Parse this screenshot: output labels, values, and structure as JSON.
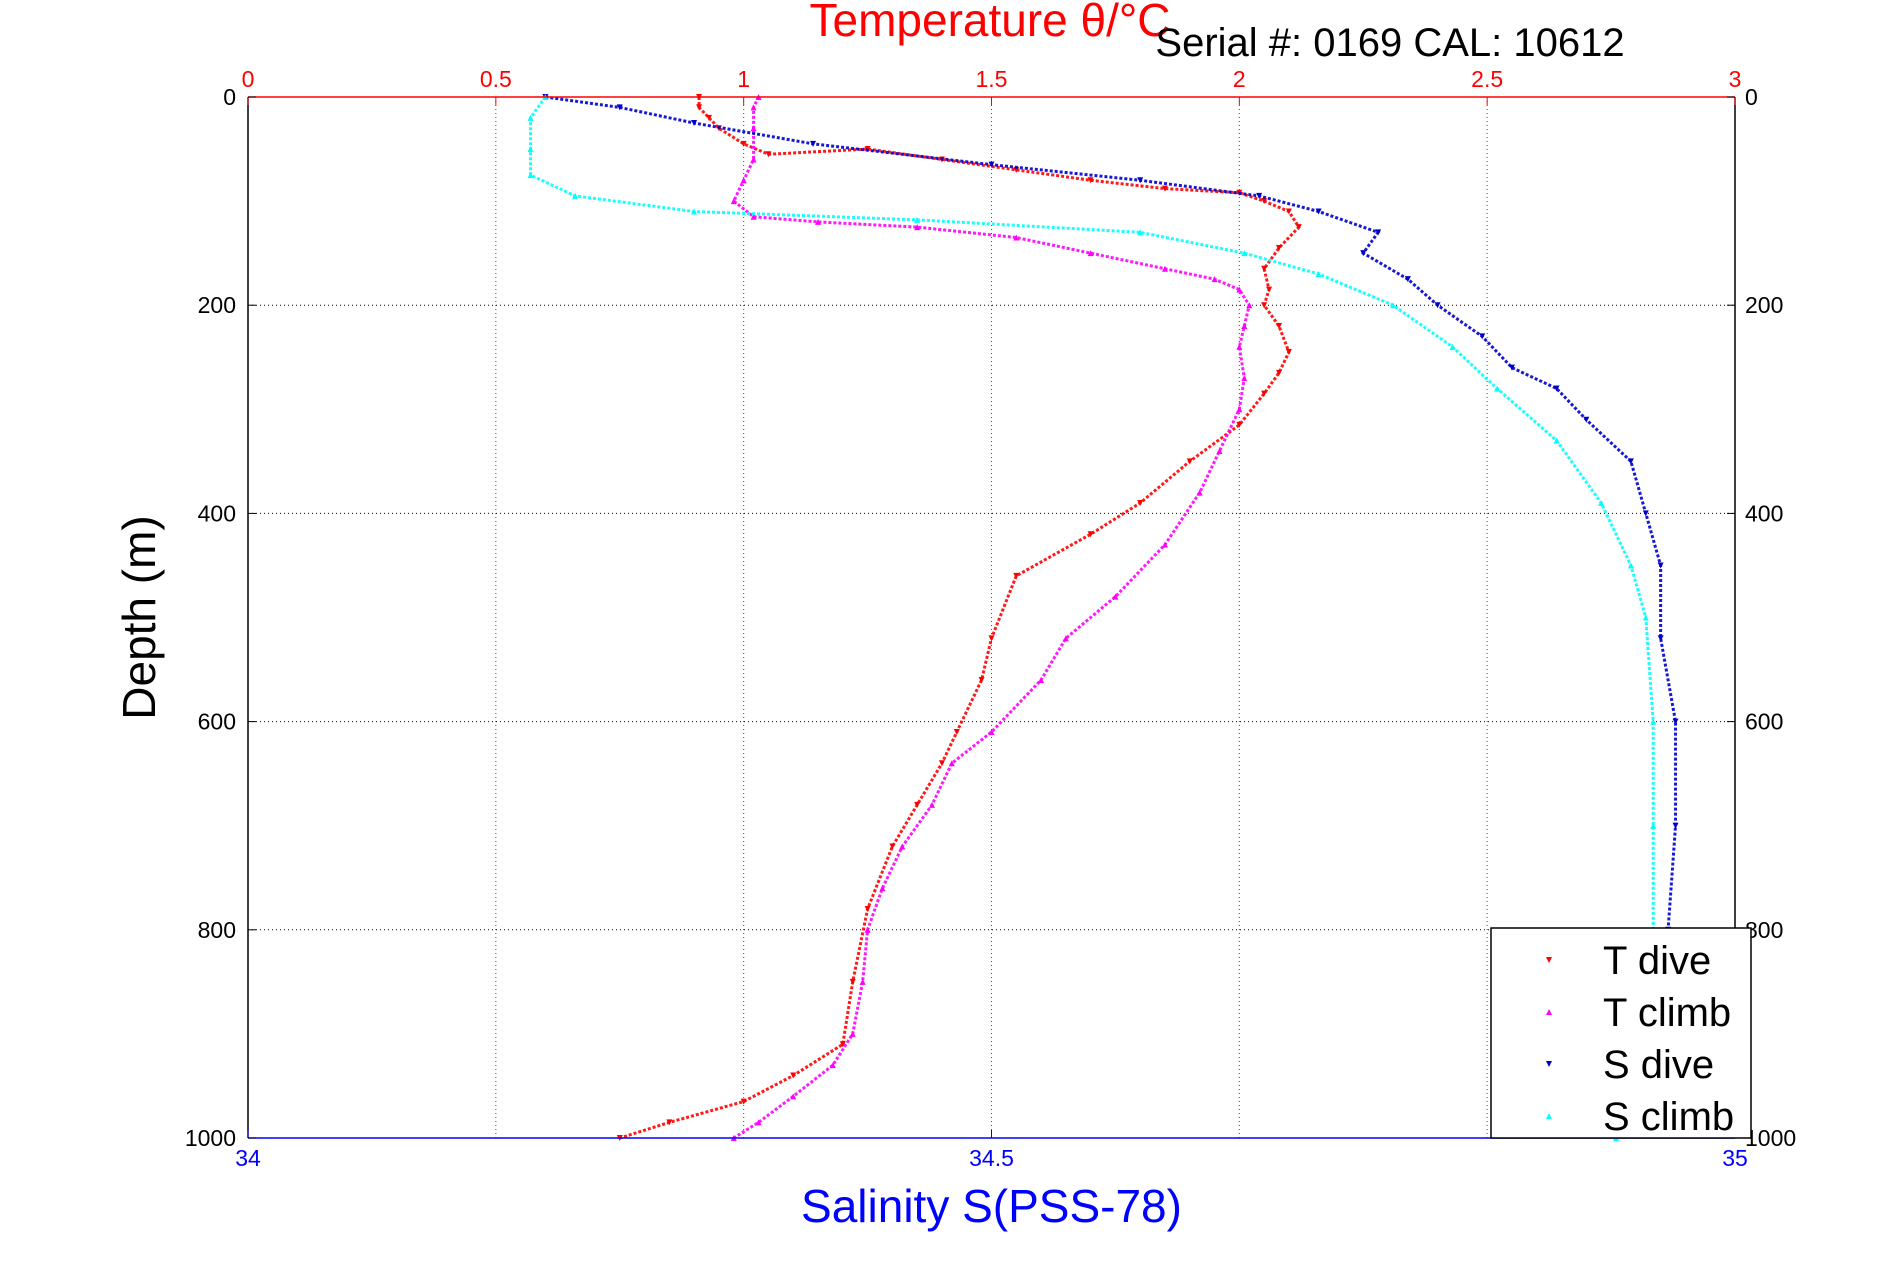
{
  "serial_text": "Serial #: 0169 CAL: 10612",
  "colors": {
    "temperature_axis": "#ff0000",
    "salinity_axis": "#0000ff",
    "t_dive": "#ff0000",
    "t_climb": "#ff00ff",
    "s_dive": "#0000cc",
    "s_climb": "#00ffff",
    "grid": "#000000"
  },
  "chart_data": {
    "type": "scatter",
    "title": "Temperature θ/°C",
    "top_axis": {
      "label": "Temperature θ/°C",
      "range": [
        0,
        3
      ],
      "ticks": [
        0,
        0.5,
        1,
        1.5,
        2,
        2.5,
        3
      ],
      "tick_labels": [
        "0",
        "0.5",
        "1",
        "1.5",
        "2",
        "2.5",
        "3"
      ],
      "grid": true
    },
    "bottom_axis": {
      "label": "Salinity S(PSS-78)",
      "range": [
        34,
        35
      ],
      "ticks": [
        34,
        34.5,
        35
      ],
      "tick_labels": [
        "34",
        "34.5",
        "35"
      ]
    },
    "y_axis": {
      "label": "Depth (m)",
      "range": [
        0,
        1000
      ],
      "reversed": true,
      "ticks": [
        0,
        200,
        400,
        600,
        800,
        1000
      ],
      "tick_labels": [
        "0",
        "200",
        "400",
        "600",
        "800",
        "1000"
      ],
      "grid": true,
      "mirrored_right": true
    },
    "legend": {
      "position": "bottom-right",
      "entries": [
        "T dive",
        "T climb",
        "S dive",
        "S climb"
      ]
    },
    "series": [
      {
        "name": "T dive",
        "axis": "temperature",
        "marker": "triangle-down",
        "points": [
          [
            0.91,
            0
          ],
          [
            0.91,
            10
          ],
          [
            0.93,
            20
          ],
          [
            0.95,
            30
          ],
          [
            1.0,
            45
          ],
          [
            1.05,
            55
          ],
          [
            1.25,
            50
          ],
          [
            1.4,
            60
          ],
          [
            1.55,
            70
          ],
          [
            1.7,
            80
          ],
          [
            1.85,
            88
          ],
          [
            2.0,
            92
          ],
          [
            2.05,
            100
          ],
          [
            2.1,
            110
          ],
          [
            2.12,
            125
          ],
          [
            2.08,
            145
          ],
          [
            2.05,
            165
          ],
          [
            2.06,
            185
          ],
          [
            2.05,
            200
          ],
          [
            2.08,
            220
          ],
          [
            2.1,
            245
          ],
          [
            2.08,
            265
          ],
          [
            2.05,
            285
          ],
          [
            2.0,
            315
          ],
          [
            1.9,
            350
          ],
          [
            1.8,
            390
          ],
          [
            1.7,
            420
          ],
          [
            1.55,
            460
          ],
          [
            1.5,
            520
          ],
          [
            1.48,
            560
          ],
          [
            1.43,
            610
          ],
          [
            1.4,
            640
          ],
          [
            1.35,
            680
          ],
          [
            1.3,
            720
          ],
          [
            1.25,
            780
          ],
          [
            1.22,
            850
          ],
          [
            1.2,
            910
          ],
          [
            1.1,
            940
          ],
          [
            1.0,
            965
          ],
          [
            0.85,
            985
          ],
          [
            0.75,
            1000
          ]
        ]
      },
      {
        "name": "T climb",
        "axis": "temperature",
        "marker": "triangle-up",
        "points": [
          [
            1.03,
            0
          ],
          [
            1.02,
            10
          ],
          [
            1.02,
            30
          ],
          [
            1.02,
            60
          ],
          [
            1.0,
            80
          ],
          [
            0.98,
            100
          ],
          [
            1.02,
            115
          ],
          [
            1.15,
            120
          ],
          [
            1.35,
            125
          ],
          [
            1.55,
            135
          ],
          [
            1.7,
            150
          ],
          [
            1.85,
            165
          ],
          [
            1.95,
            175
          ],
          [
            2.0,
            185
          ],
          [
            2.02,
            200
          ],
          [
            2.01,
            220
          ],
          [
            2.0,
            240
          ],
          [
            2.01,
            270
          ],
          [
            2.0,
            300
          ],
          [
            1.96,
            340
          ],
          [
            1.92,
            380
          ],
          [
            1.85,
            430
          ],
          [
            1.75,
            480
          ],
          [
            1.65,
            520
          ],
          [
            1.6,
            560
          ],
          [
            1.5,
            610
          ],
          [
            1.42,
            640
          ],
          [
            1.38,
            680
          ],
          [
            1.32,
            720
          ],
          [
            1.28,
            760
          ],
          [
            1.25,
            800
          ],
          [
            1.24,
            850
          ],
          [
            1.22,
            900
          ],
          [
            1.18,
            930
          ],
          [
            1.1,
            960
          ],
          [
            1.03,
            985
          ],
          [
            0.98,
            1000
          ]
        ]
      },
      {
        "name": "S dive",
        "axis": "salinity",
        "marker": "triangle-down",
        "points": [
          [
            34.2,
            0
          ],
          [
            34.25,
            10
          ],
          [
            34.3,
            25
          ],
          [
            34.38,
            45
          ],
          [
            34.5,
            65
          ],
          [
            34.6,
            80
          ],
          [
            34.68,
            95
          ],
          [
            34.72,
            110
          ],
          [
            34.76,
            130
          ],
          [
            34.75,
            150
          ],
          [
            34.78,
            175
          ],
          [
            34.8,
            200
          ],
          [
            34.83,
            230
          ],
          [
            34.85,
            260
          ],
          [
            34.88,
            280
          ],
          [
            34.9,
            310
          ],
          [
            34.93,
            350
          ],
          [
            34.94,
            400
          ],
          [
            34.95,
            450
          ],
          [
            34.95,
            520
          ],
          [
            34.96,
            600
          ],
          [
            34.96,
            700
          ],
          [
            34.955,
            800
          ],
          [
            34.95,
            900
          ],
          [
            34.93,
            960
          ],
          [
            34.92,
            1000
          ]
        ]
      },
      {
        "name": "S climb",
        "axis": "salinity",
        "marker": "triangle-up",
        "points": [
          [
            34.2,
            0
          ],
          [
            34.19,
            20
          ],
          [
            34.19,
            50
          ],
          [
            34.19,
            75
          ],
          [
            34.22,
            95
          ],
          [
            34.3,
            110
          ],
          [
            34.45,
            118
          ],
          [
            34.6,
            130
          ],
          [
            34.67,
            150
          ],
          [
            34.72,
            170
          ],
          [
            34.77,
            200
          ],
          [
            34.81,
            240
          ],
          [
            34.84,
            280
          ],
          [
            34.88,
            330
          ],
          [
            34.91,
            390
          ],
          [
            34.93,
            450
          ],
          [
            34.94,
            500
          ],
          [
            34.945,
            600
          ],
          [
            34.945,
            700
          ],
          [
            34.945,
            800
          ],
          [
            34.94,
            900
          ],
          [
            34.93,
            960
          ],
          [
            34.9,
            990
          ],
          [
            34.92,
            1000
          ]
        ]
      }
    ]
  }
}
